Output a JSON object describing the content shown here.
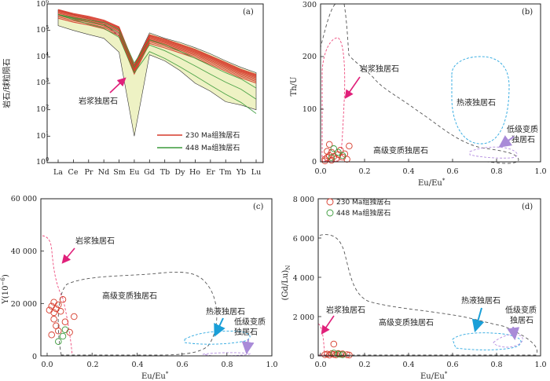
{
  "chart_data": [
    {
      "type": "line",
      "panel": "(a)",
      "ylabel": "岩石/球粒陨石",
      "yscale": "log",
      "ylim": [
        1,
        1000000
      ],
      "yticks": [
        "10⁰",
        "10¹",
        "10²",
        "10³",
        "10⁴",
        "10⁵",
        "10⁶"
      ],
      "categories": [
        "La",
        "Ce",
        "Pr",
        "Nd",
        "Sm",
        "Eu",
        "Gd",
        "Tb",
        "Dy",
        "Ho",
        "Er",
        "Tm",
        "Yb",
        "Lu"
      ],
      "envelope": {
        "color": "#eef2c4",
        "upper": [
          600000,
          400000,
          280000,
          180000,
          60000,
          5000,
          80000,
          50000,
          35000,
          22000,
          13000,
          7000,
          4000,
          2500
        ],
        "lower": [
          150000,
          100000,
          70000,
          50000,
          15000,
          10,
          12000,
          7000,
          3000,
          1000,
          500,
          200,
          150,
          100
        ]
      },
      "series": [
        {
          "name": "230 Ma组独居石",
          "color": "#d63a2a",
          "count": 9,
          "values": [
            450000,
            320000,
            250000,
            180000,
            100000,
            3500,
            50000,
            34000,
            22000,
            14000,
            8000,
            4500,
            2500,
            1600
          ]
        },
        {
          "name": "448 Ma组独居石",
          "color": "#3a9a3a",
          "count": 3,
          "values": [
            400000,
            280000,
            210000,
            160000,
            80000,
            4000,
            28000,
            17000,
            9000,
            4500,
            2200,
            1100,
            600,
            250
          ]
        }
      ],
      "annotations": [
        {
          "text": "岩浆独居石",
          "color": "#e0207a"
        }
      ]
    },
    {
      "type": "scatter",
      "panel": "(b)",
      "xlabel": "Eu/Eu*",
      "ylabel": "Th/U",
      "xlim": [
        0,
        1.0
      ],
      "ylim": [
        0,
        300
      ],
      "xticks": [
        "0.0",
        "0.2",
        "0.4",
        "0.6",
        "0.8",
        "1.0"
      ],
      "yticks": [
        "0",
        "100",
        "200",
        "300"
      ],
      "regions": [
        {
          "name": "岩浆独居石",
          "color": "#ee4b7c"
        },
        {
          "name": "热液独居石",
          "color": "#2aa7e0"
        },
        {
          "name": "高级变质独居石",
          "color": "#555555"
        },
        {
          "name": "低级变质独居石",
          "color": "#b48ee0"
        }
      ],
      "points_230": [
        [
          0.02,
          5
        ],
        [
          0.03,
          8
        ],
        [
          0.04,
          12
        ],
        [
          0.05,
          3
        ],
        [
          0.06,
          10
        ],
        [
          0.03,
          20
        ],
        [
          0.05,
          18
        ],
        [
          0.07,
          6
        ],
        [
          0.08,
          14
        ],
        [
          0.1,
          9
        ],
        [
          0.12,
          5
        ],
        [
          0.04,
          33
        ],
        [
          0.02,
          2
        ],
        [
          0.11,
          15
        ],
        [
          0.13,
          30
        ],
        [
          0.09,
          22
        ]
      ],
      "points_448": [
        [
          0.06,
          25
        ],
        [
          0.08,
          18
        ],
        [
          0.1,
          12
        ],
        [
          0.05,
          8
        ]
      ]
    },
    {
      "type": "scatter",
      "panel": "(c)",
      "xlabel": "Eu/Eu*",
      "ylabel": "Y(10⁻⁶)",
      "xlim": [
        0,
        1.0
      ],
      "ylim": [
        0,
        60000
      ],
      "xticks": [
        "0.0",
        "0.2",
        "0.4",
        "0.6",
        "0.8",
        "1.0"
      ],
      "yticks": [
        "0",
        "20 000",
        "40 000",
        "60 000"
      ],
      "regions": [
        {
          "name": "岩浆独居石",
          "color": "#ee4b7c"
        },
        {
          "name": "高级变质独居石",
          "color": "#555555"
        },
        {
          "name": "热液独居石",
          "color": "#2aa7e0"
        },
        {
          "name": "低级变质独居石",
          "color": "#b48ee0"
        }
      ],
      "points_230": [
        [
          0.01,
          17500
        ],
        [
          0.02,
          19000
        ],
        [
          0.03,
          16500
        ],
        [
          0.04,
          18000
        ],
        [
          0.05,
          19500
        ],
        [
          0.03,
          14000
        ],
        [
          0.04,
          11500
        ],
        [
          0.05,
          9500
        ],
        [
          0.02,
          8000
        ],
        [
          0.06,
          17000
        ],
        [
          0.07,
          21500
        ],
        [
          0.08,
          13000
        ],
        [
          0.1,
          9000
        ],
        [
          0.12,
          15000
        ],
        [
          0.03,
          20500
        ]
      ],
      "points_448": [
        [
          0.05,
          5500
        ],
        [
          0.07,
          7500
        ],
        [
          0.08,
          10000
        ]
      ]
    },
    {
      "type": "scatter",
      "panel": "(d)",
      "xlabel": "Eu/Eu*",
      "ylabel": "(Gd/Lu)N",
      "xlim": [
        0,
        1.0
      ],
      "ylim": [
        0,
        8000
      ],
      "xticks": [
        "0.0",
        "0.2",
        "0.4",
        "0.6",
        "0.8",
        "1.0"
      ],
      "yticks": [
        "0",
        "2 000",
        "4 000",
        "6 000",
        "8 000"
      ],
      "legend": [
        "230 Ma组独居石",
        "448 Ma组独居石"
      ],
      "regions": [
        {
          "name": "岩浆独居石",
          "color": "#ee4b7c"
        },
        {
          "name": "高级变质独居石",
          "color": "#555555"
        },
        {
          "name": "热液独居石",
          "color": "#2aa7e0"
        },
        {
          "name": "低级变质独居石",
          "color": "#b48ee0"
        }
      ],
      "points_230": [
        [
          0.02,
          60
        ],
        [
          0.03,
          90
        ],
        [
          0.04,
          40
        ],
        [
          0.05,
          110
        ],
        [
          0.06,
          70
        ],
        [
          0.07,
          50
        ],
        [
          0.08,
          120
        ],
        [
          0.09,
          80
        ],
        [
          0.1,
          100
        ],
        [
          0.12,
          60
        ],
        [
          0.13,
          40
        ],
        [
          0.06,
          600
        ]
      ],
      "points_448": [
        [
          0.06,
          140
        ],
        [
          0.08,
          90
        ],
        [
          0.1,
          60
        ]
      ]
    }
  ],
  "labels": {
    "a": {
      "panel": "(a)",
      "ylabel": "岩石/球粒陨石",
      "note": "岩浆独居石",
      "legend_230": "230 Ma组独居石",
      "legend_448": "448 Ma组独居石",
      "yt0": "10",
      "ye0": "0",
      "yt1": "10",
      "ye1": "1",
      "yt2": "10",
      "ye2": "2",
      "yt3": "10",
      "ye3": "3",
      "yt4": "10",
      "ye4": "4",
      "yt5": "10",
      "ye5": "5",
      "yt6": "10",
      "ye6": "6",
      "x0": "La",
      "x1": "Ce",
      "x2": "Pr",
      "x3": "Nd",
      "x4": "Sm",
      "x5": "Eu",
      "x6": "Gd",
      "x7": "Tb",
      "x8": "Dy",
      "x9": "Ho",
      "x10": "Er",
      "x11": "Tm",
      "x12": "Yb",
      "x13": "Lu"
    },
    "b": {
      "panel": "(b)",
      "ylabel": "Th/U",
      "xlabel": "Eu/Eu",
      "xlabel_sup": "*",
      "magmatic": "岩浆独居石",
      "hydro": "热液独居石",
      "high": "高级变质独居石",
      "low1": "低级变质",
      "low2": "独居石",
      "y0": "0",
      "y1": "100",
      "y2": "200",
      "y3": "300",
      "x0": "0.0",
      "x1": "0.2",
      "x2": "0.4",
      "x3": "0.6",
      "x4": "0.8",
      "x5": "1.0"
    },
    "c": {
      "panel": "(c)",
      "ylabel": "Y(10",
      "ylabel_sup": "−6",
      "ylabel_end": ")",
      "xlabel": "Eu/Eu",
      "xlabel_sup": "*",
      "magmatic": "岩浆独居石",
      "high": "高级变质独居石",
      "hydro": "热液独居石",
      "low1": "低级变质",
      "low2": "独居石",
      "y0": "0",
      "y1": "20 000",
      "y2": "40 000",
      "y3": "60 000",
      "x0": "0.0",
      "x1": "0.2",
      "x2": "0.4",
      "x3": "0.6",
      "x4": "0.8",
      "x5": "1.0"
    },
    "d": {
      "panel": "(d)",
      "ylabel": "(Gd/Lu)",
      "ylabel_sub": "N",
      "xlabel": "Eu/Eu",
      "xlabel_sup": "*",
      "magmatic": "岩浆独居石",
      "high": "高级变质独居石",
      "hydro": "热液独居石",
      "low1": "低级变质",
      "low2": "独居石",
      "legend_230": "230 Ma组独居石",
      "legend_448": "448 Ma组独居石",
      "y0": "0",
      "y1": "2 000",
      "y2": "4 000",
      "y3": "6 000",
      "y4": "8 000",
      "x0": "0.0",
      "x1": "0.2",
      "x2": "0.4",
      "x3": "0.6",
      "x4": "0.8",
      "x5": "1.0"
    }
  },
  "colors": {
    "magmatic": "#ee4b7c",
    "hydro": "#2aa7e0",
    "high": "#555555",
    "low": "#b48ee0",
    "arrow_magmatic": "#e0207a",
    "arrow_hydro": "#1a9fd8",
    "arrow_low": "#a98bd8",
    "s230": "#d63a2a",
    "s448": "#3a9a3a",
    "envelope_fill": "#eef2c4"
  }
}
